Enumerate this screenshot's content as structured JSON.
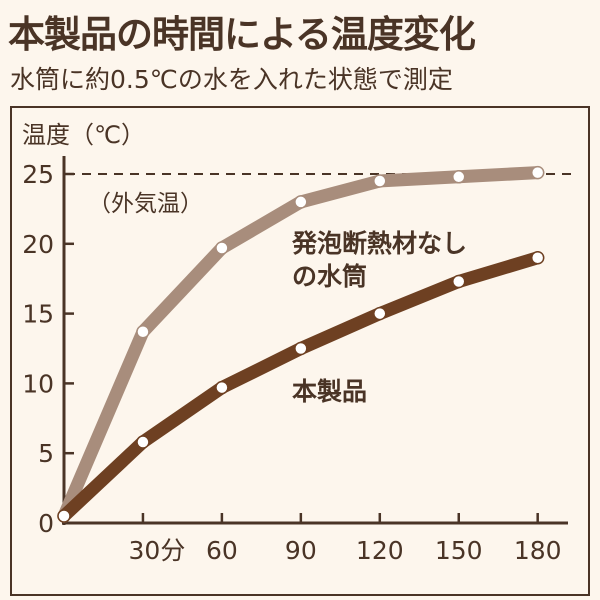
{
  "header": {
    "title": "本製品の時間による温度変化",
    "subtitle": "水筒に約0.5℃の水を入れた状態で測定"
  },
  "colors": {
    "background": "#fdf6ed",
    "text": "#4a3426",
    "series_product": "#6e4022",
    "series_no_insulation": "#a88d7c"
  },
  "chart_data": {
    "type": "line",
    "title": "",
    "ylabel": "温度（℃）",
    "xlabel": "",
    "x_tick_labels": [
      "30分",
      "60",
      "90",
      "120",
      "150",
      "180"
    ],
    "x_ticks": [
      30,
      60,
      90,
      120,
      150,
      180
    ],
    "y_ticks": [
      0,
      5,
      10,
      15,
      20,
      25
    ],
    "xlim": [
      0,
      190
    ],
    "ylim": [
      0,
      25
    ],
    "grid": false,
    "reference_line": {
      "value": 25,
      "label": "（外気温）"
    },
    "x": [
      0,
      30,
      60,
      90,
      120,
      150,
      180
    ],
    "series": [
      {
        "name": "発泡断熱材なしの水筒",
        "label_lines": [
          "発泡断熱材なし",
          "の水筒"
        ],
        "values": [
          0.5,
          13.7,
          19.7,
          23.0,
          24.5,
          24.8,
          25.1
        ]
      },
      {
        "name": "本製品",
        "label_lines": [
          "本製品"
        ],
        "values": [
          0.5,
          5.8,
          9.7,
          12.5,
          15.0,
          17.3,
          19.0
        ]
      }
    ]
  }
}
